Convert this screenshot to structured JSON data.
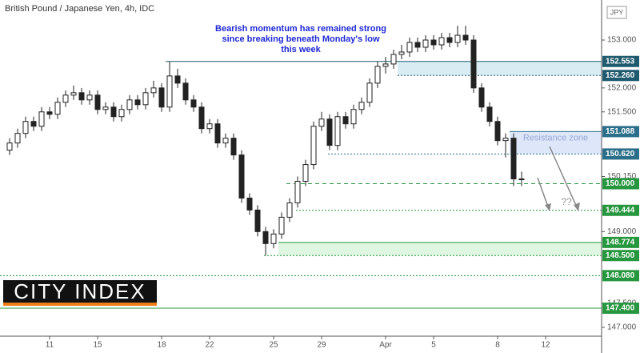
{
  "chart_data": {
    "type": "candlestick",
    "title": "British Pound / Japanese Yen, 4h, IDC",
    "currency": "JPY",
    "annotation": [
      "Bearish momentum has remained strong",
      "since breaking beneath Monday's low",
      "this week"
    ],
    "question": "??",
    "logo": "CITY INDEX",
    "up_color": "#ffffff",
    "down_color": "#222222",
    "x": [
      1,
      2,
      3,
      4,
      5,
      6,
      7,
      8,
      9,
      10,
      11,
      12,
      13,
      14,
      15,
      16,
      17,
      18,
      19,
      20,
      21,
      22,
      23,
      24,
      25,
      26,
      27,
      28,
      29,
      30,
      31,
      32,
      33,
      34,
      35,
      36,
      37,
      38,
      39,
      40,
      41,
      42,
      43,
      44,
      45,
      46,
      47,
      48,
      49,
      50,
      51,
      52,
      53,
      54,
      55,
      56,
      57,
      58,
      59,
      60,
      61,
      62,
      63,
      64,
      65
    ],
    "open": [
      150.7,
      150.85,
      151.05,
      151.3,
      151.2,
      151.5,
      151.45,
      151.7,
      151.85,
      151.9,
      151.75,
      151.85,
      151.55,
      151.6,
      151.4,
      151.55,
      151.75,
      151.65,
      151.9,
      152.0,
      151.6,
      152.25,
      152.1,
      151.75,
      151.6,
      151.15,
      151.25,
      150.85,
      150.95,
      150.6,
      149.7,
      149.45,
      149.0,
      148.75,
      148.95,
      149.3,
      149.6,
      150.05,
      150.4,
      151.2,
      151.35,
      150.8,
      151.4,
      151.25,
      151.55,
      151.7,
      152.1,
      152.45,
      152.5,
      152.7,
      152.75,
      152.95,
      152.85,
      153.0,
      152.9,
      153.05,
      152.95,
      153.1,
      153.0,
      152.0,
      151.6,
      151.3,
      150.9,
      150.95,
      150.1
    ],
    "high": [
      150.95,
      151.15,
      151.4,
      151.4,
      151.6,
      151.6,
      151.8,
      151.95,
      152.05,
      152.0,
      151.95,
      151.95,
      151.7,
      151.7,
      151.65,
      151.85,
      151.85,
      152.0,
      152.15,
      152.1,
      152.55,
      152.4,
      152.2,
      151.85,
      151.7,
      151.35,
      151.35,
      151.05,
      151.05,
      150.7,
      149.8,
      149.55,
      149.1,
      149.05,
      149.4,
      149.7,
      150.15,
      150.5,
      151.3,
      151.5,
      151.45,
      151.5,
      151.5,
      151.65,
      151.8,
      152.2,
      152.55,
      152.65,
      152.8,
      152.9,
      153.05,
      153.05,
      153.1,
      153.1,
      153.15,
      153.15,
      153.3,
      153.3,
      153.1,
      152.1,
      151.7,
      151.4,
      151.05,
      151.05,
      150.25
    ],
    "low": [
      150.6,
      150.75,
      150.95,
      151.1,
      151.1,
      151.35,
      151.35,
      151.6,
      151.75,
      151.65,
      151.65,
      151.45,
      151.45,
      151.3,
      151.3,
      151.45,
      151.55,
      151.55,
      151.8,
      151.5,
      151.5,
      152.0,
      151.65,
      151.5,
      151.05,
      151.05,
      150.75,
      150.75,
      150.5,
      149.6,
      149.35,
      148.9,
      148.5,
      148.65,
      148.85,
      149.2,
      149.5,
      149.95,
      150.3,
      151.1,
      150.7,
      150.7,
      151.15,
      151.15,
      151.45,
      151.6,
      152.0,
      152.3,
      152.4,
      152.6,
      152.65,
      152.75,
      152.75,
      152.8,
      152.8,
      152.85,
      152.85,
      152.9,
      151.9,
      151.5,
      151.2,
      150.8,
      150.55,
      149.95,
      149.95
    ],
    "close": [
      150.85,
      151.05,
      151.3,
      151.2,
      151.5,
      151.45,
      151.7,
      151.85,
      151.9,
      151.75,
      151.85,
      151.55,
      151.6,
      151.4,
      151.55,
      151.75,
      151.65,
      151.9,
      152.0,
      151.6,
      152.25,
      152.1,
      151.75,
      151.6,
      151.15,
      151.25,
      150.85,
      150.95,
      150.6,
      149.7,
      149.45,
      149.0,
      148.75,
      148.95,
      149.3,
      149.6,
      150.05,
      150.4,
      151.2,
      151.35,
      150.8,
      151.4,
      151.25,
      151.55,
      151.7,
      152.1,
      152.45,
      152.5,
      152.7,
      152.75,
      152.95,
      152.85,
      153.0,
      152.9,
      153.05,
      152.95,
      153.1,
      153.0,
      152.0,
      151.6,
      151.3,
      150.9,
      150.95,
      150.1,
      150.1
    ],
    "xlim": [
      -0.2,
      75
    ],
    "xticks": [
      {
        "value": 6,
        "label": "11"
      },
      {
        "value": 12,
        "label": "15"
      },
      {
        "value": 20,
        "label": "18"
      },
      {
        "value": 26,
        "label": "22"
      },
      {
        "value": 34,
        "label": "25"
      },
      {
        "value": 40,
        "label": "29"
      },
      {
        "value": 48,
        "label": "Apr"
      },
      {
        "value": 54,
        "label": "5"
      },
      {
        "value": 62,
        "label": "8"
      },
      {
        "value": 68,
        "label": "12"
      }
    ],
    "ylim": [
      146.816,
      153.836
    ],
    "yticks": [
      {
        "value": 147,
        "label": "147.000"
      },
      {
        "value": 147.5,
        "label": "147.500"
      },
      {
        "value": 149,
        "label": "149.000"
      },
      {
        "value": 150.15,
        "label": "150.150"
      },
      {
        "value": 151.5,
        "label": "151.500"
      },
      {
        "value": 152,
        "label": "152.000"
      },
      {
        "value": 153,
        "label": "153.000"
      }
    ],
    "zones": [
      {
        "high": {
          "value": 152.553,
          "label": "152.553",
          "start": 20.5
        },
        "low": {
          "value": 152.26,
          "label": "152.260",
          "start": 49.5
        },
        "color": "#1f5a6e",
        "fill": "#d9ecf4"
      },
      {
        "high": {
          "value": 151.088,
          "label": "151.088",
          "start": 63.5
        },
        "low": {
          "value": 150.62,
          "label": "150.620",
          "start": 40.8
        },
        "color": "#2b6f8a",
        "fill": "#dde7f9",
        "label": "Resistance zone"
      },
      {
        "high": {
          "value": 148.774,
          "label": "148.774",
          "start": 34.6
        },
        "low": {
          "value": 148.5,
          "label": "148.500",
          "start": 32.8
        },
        "color": "#27973f",
        "fill": "#dff6e2"
      }
    ],
    "levels": [
      {
        "value": 150,
        "label": "150.000",
        "start": 35.6,
        "color": "#27973f",
        "style": "dashed"
      },
      {
        "value": 149.444,
        "label": "149.444",
        "start": 36.8,
        "color": "#27973f",
        "style": "dotted"
      },
      {
        "value": 148.08,
        "label": "148.080",
        "start": -0.2,
        "color": "#27973f",
        "style": "dotted"
      },
      {
        "value": 147.4,
        "label": "147.400",
        "start": -0.2,
        "color": "#27973f",
        "style": "solid"
      }
    ]
  }
}
